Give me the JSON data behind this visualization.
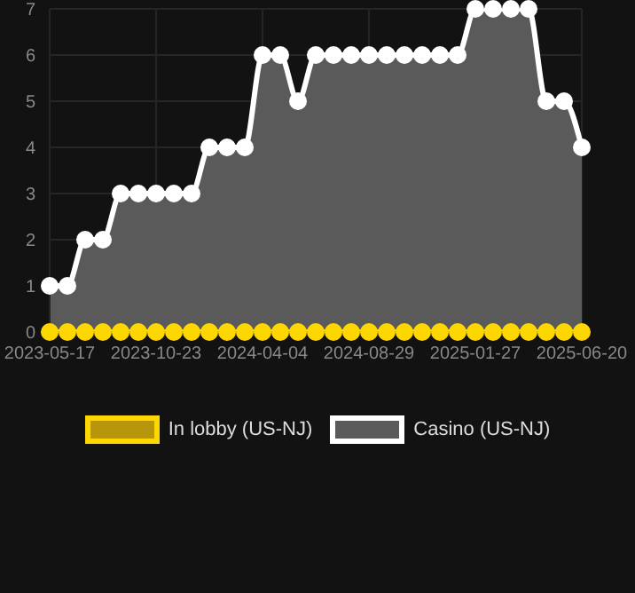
{
  "chart_data": {
    "type": "area",
    "categories": [
      "2023-05-17",
      null,
      null,
      null,
      null,
      null,
      "2023-10-23",
      null,
      null,
      null,
      null,
      null,
      "2024-04-04",
      null,
      null,
      null,
      null,
      null,
      "2024-08-29",
      null,
      null,
      null,
      null,
      null,
      "2025-01-27",
      null,
      null,
      null,
      null,
      null,
      "2025-06-20"
    ],
    "series": [
      {
        "name": "In lobby (US-NJ)",
        "type": "line",
        "color": "#ffd700",
        "values": [
          0,
          0,
          0,
          0,
          0,
          0,
          0,
          0,
          0,
          0,
          0,
          0,
          0,
          0,
          0,
          0,
          0,
          0,
          0,
          0,
          0,
          0,
          0,
          0,
          0,
          0,
          0,
          0,
          0,
          0,
          0
        ]
      },
      {
        "name": "Casino (US-NJ)",
        "color": "#ffffff",
        "values": [
          1,
          1,
          2,
          2,
          3,
          3,
          3,
          3,
          3,
          4,
          4,
          4,
          6,
          6,
          5,
          6,
          6,
          6,
          6,
          6,
          6,
          6,
          6,
          6,
          7,
          7,
          7,
          7,
          5,
          5,
          4
        ]
      }
    ],
    "ylim": [
      0,
      7
    ],
    "yticks": [
      0,
      1,
      2,
      3,
      4,
      5,
      6,
      7
    ],
    "grid": true,
    "legend": "bottom",
    "marker": "circle"
  }
}
